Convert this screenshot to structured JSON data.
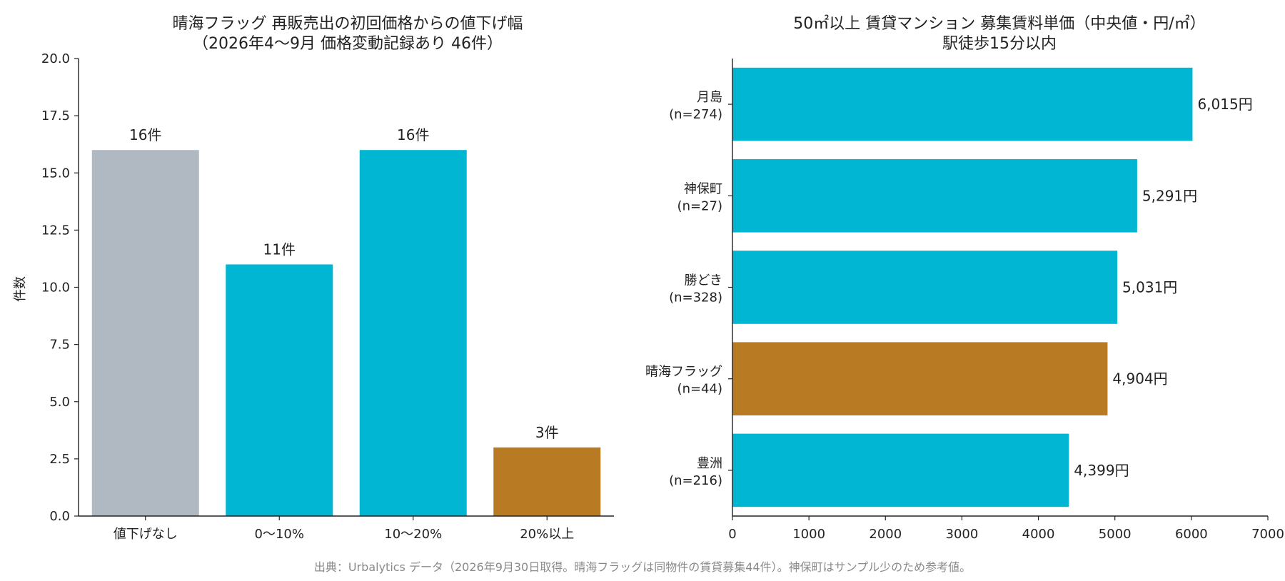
{
  "chart_data": [
    {
      "type": "bar",
      "title_lines": [
        "晴海フラッグ 再販売出の初回価格からの値下げ幅",
        "（2026年4〜9月 価格変動記録あり 46件）"
      ],
      "ylabel": "件数",
      "xlabel": "",
      "categories": [
        "値下げなし",
        "0〜10%",
        "10〜20%",
        "20%以上"
      ],
      "values": [
        16,
        11,
        16,
        3
      ],
      "data_labels": [
        "16件",
        "11件",
        "16件",
        "3件"
      ],
      "colors": [
        "#b0b8c1",
        "#00b6d2",
        "#00b6d2",
        "#b87a22"
      ],
      "ylim": [
        0,
        20
      ],
      "yticks": [
        0,
        2.5,
        5,
        7.5,
        10,
        12.5,
        15,
        17.5,
        20
      ],
      "ytick_labels": [
        "0.0",
        "2.5",
        "5.0",
        "7.5",
        "10.0",
        "12.5",
        "15.0",
        "17.5",
        "20.0"
      ],
      "grid": false,
      "legend": "none"
    },
    {
      "type": "bar",
      "orientation": "horizontal",
      "title_lines": [
        "50㎡以上 賃貸マンション 募集賃料単価（中央値・円/㎡）",
        "駅徒歩15分以内"
      ],
      "xlabel": "",
      "ylabel": "",
      "categories": [
        {
          "name": "月島",
          "n": "(n=274)"
        },
        {
          "name": "神保町",
          "n": "(n=27)"
        },
        {
          "name": "勝どき",
          "n": "(n=328)"
        },
        {
          "name": "晴海フラッグ",
          "n": "(n=44)"
        },
        {
          "name": "豊洲",
          "n": "(n=216)"
        }
      ],
      "values": [
        6015,
        5291,
        5031,
        4904,
        4399
      ],
      "data_labels": [
        "6,015円",
        "5,291円",
        "5,031円",
        "4,904円",
        "4,399円"
      ],
      "colors": [
        "#00b6d2",
        "#00b6d2",
        "#00b6d2",
        "#b87a22",
        "#00b6d2"
      ],
      "xlim": [
        0,
        7000
      ],
      "xticks": [
        0,
        1000,
        2000,
        3000,
        4000,
        5000,
        6000,
        7000
      ],
      "xtick_labels": [
        "0",
        "1000",
        "2000",
        "3000",
        "4000",
        "5000",
        "6000",
        "7000"
      ],
      "grid": false,
      "legend": "none"
    }
  ],
  "source": "出典：Urbalytics データ（2026年9月30日取得。晴海フラッグは同物件の賃貸募集44件）。神保町はサンプル少のため参考値。"
}
